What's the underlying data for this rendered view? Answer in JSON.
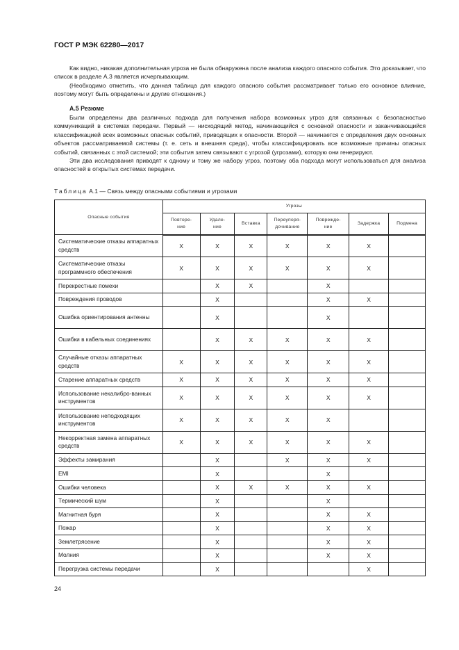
{
  "header": {
    "title": "ГОСТ Р МЭК 62280—2017"
  },
  "body": {
    "p1": "Как видно, никакая дополнительная угроза не была обнаружена после анализа каждого опасного события. Это доказывает, что список в разделе А.3 является исчерпывающим.",
    "p2": "(Необходимо отметить, что данная таблица для каждого опасного события рассматривает только его основное влияние, поэтому могут быть определены и другие отношения.)",
    "heading": "А.5 Резюме",
    "p3": "Были определены два различных подхода для получения набора возможных угроз для связанных с безопасностью коммуникаций в системах передачи. Первый — нисходящий метод, начинающийся с основной опасности и заканчивающийся классификацией всех возможных опасных событий, приводящих к опасности. Второй — начинается с определения двух основных объектов рассматриваемой системы (т. е. сеть и внешняя среда), чтобы классифицировать все возможные причины опасных событий, связанных с этой системой; эти события затем связывают с угрозой (угрозами), которую они генерируют.",
    "p4": "Эти два исследования приводят к одному и тому же набору угроз, поэтому оба подхода могут использоваться для анализа опасностей в открытых системах передачи."
  },
  "table": {
    "caption_prefix": "Таблица",
    "caption": "А.1 — Связь между опасными событиями и угрозами",
    "col_events": "Опасные события",
    "col_threats": "Угрозы",
    "threats": [
      "Повторе-\nние",
      "Удале-\nние",
      "Вставка",
      "Переупоря-\nдочивание",
      "Поврежде-\nние",
      "Задержка",
      "Подмена"
    ],
    "rows": [
      {
        "event": "Систематические отказы аппаратных средств",
        "marks": [
          "X",
          "X",
          "X",
          "X",
          "X",
          "X",
          ""
        ]
      },
      {
        "event": "Систематические отказы программного обеспечения",
        "marks": [
          "X",
          "X",
          "X",
          "X",
          "X",
          "X",
          ""
        ]
      },
      {
        "event": "Перекрестные помехи",
        "marks": [
          "",
          "X",
          "X",
          "",
          "X",
          "",
          ""
        ]
      },
      {
        "event": "Повреждения проводов",
        "marks": [
          "",
          "X",
          "",
          "",
          "X",
          "X",
          ""
        ]
      },
      {
        "event": "Ошибка ориентирования антенны",
        "marks": [
          "",
          "X",
          "",
          "",
          "X",
          "",
          ""
        ]
      },
      {
        "event": "Ошибки в кабельных соединениях",
        "marks": [
          "",
          "X",
          "X",
          "X",
          "X",
          "X",
          ""
        ]
      },
      {
        "event": "Случайные отказы аппаратных средств",
        "marks": [
          "X",
          "X",
          "X",
          "X",
          "X",
          "X",
          ""
        ]
      },
      {
        "event": "Старение аппаратных средств",
        "marks": [
          "X",
          "X",
          "X",
          "X",
          "X",
          "X",
          ""
        ]
      },
      {
        "event": "Использование некалибро-ванных инструментов",
        "marks": [
          "X",
          "X",
          "X",
          "X",
          "X",
          "X",
          ""
        ]
      },
      {
        "event": "Использование неподходящих инструментов",
        "marks": [
          "X",
          "X",
          "X",
          "X",
          "X",
          "",
          ""
        ]
      },
      {
        "event": "Некорректная замена аппаратных средств",
        "marks": [
          "X",
          "X",
          "X",
          "X",
          "X",
          "X",
          ""
        ]
      },
      {
        "event": "Эффекты замирания",
        "marks": [
          "",
          "X",
          "",
          "X",
          "X",
          "X",
          ""
        ]
      },
      {
        "event": "EMI",
        "marks": [
          "",
          "X",
          "",
          "",
          "X",
          "",
          ""
        ]
      },
      {
        "event": "Ошибки человека",
        "marks": [
          "",
          "X",
          "X",
          "X",
          "X",
          "X",
          ""
        ]
      },
      {
        "event": "Термический шум",
        "marks": [
          "",
          "X",
          "",
          "",
          "X",
          "",
          ""
        ]
      },
      {
        "event": "Магнитная буря",
        "marks": [
          "",
          "X",
          "",
          "",
          "X",
          "X",
          ""
        ]
      },
      {
        "event": "Пожар",
        "marks": [
          "",
          "X",
          "",
          "",
          "X",
          "X",
          ""
        ]
      },
      {
        "event": "Землетрясение",
        "marks": [
          "",
          "X",
          "",
          "",
          "X",
          "X",
          ""
        ]
      },
      {
        "event": "Молния",
        "marks": [
          "",
          "X",
          "",
          "",
          "X",
          "X",
          ""
        ]
      },
      {
        "event": "Перегрузка системы передачи",
        "marks": [
          "",
          "X",
          "",
          "",
          "",
          "X",
          ""
        ]
      }
    ]
  },
  "footer": {
    "page_number": "24"
  }
}
